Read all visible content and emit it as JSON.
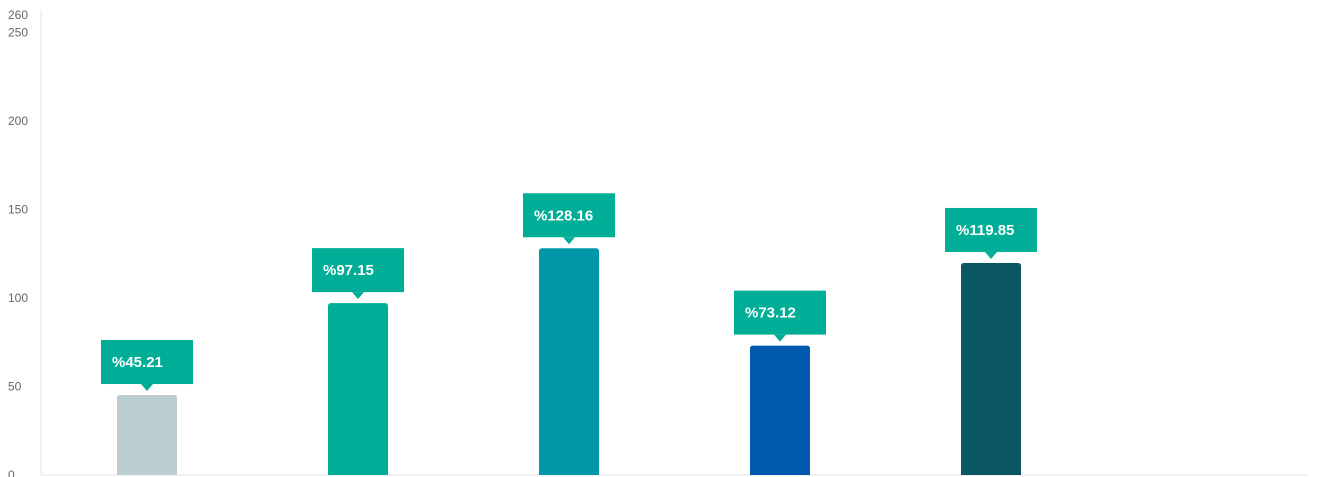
{
  "chart_data": {
    "type": "bar",
    "categories": [
      "",
      "",
      "",
      "",
      ""
    ],
    "values": [
      45.21,
      97.15,
      128.16,
      73.12,
      119.85
    ],
    "value_labels": [
      "%45.21",
      "%97.15",
      "%128.16",
      "%73.12",
      "%119.85"
    ],
    "bar_colors": [
      "#bccdd1",
      "#00ae98",
      "#0098a8",
      "#0059ad",
      "#0a5663"
    ],
    "label_bg_color": "#00ae98",
    "ylim": [
      0,
      260
    ],
    "y_ticks": [
      0,
      50,
      100,
      150,
      200,
      250,
      260
    ],
    "y_tick_labels": [
      "0",
      "50",
      "100",
      "150",
      "200",
      "250",
      "260"
    ],
    "title": "",
    "xlabel": "",
    "ylabel": "",
    "grid": false,
    "legend": "none"
  }
}
